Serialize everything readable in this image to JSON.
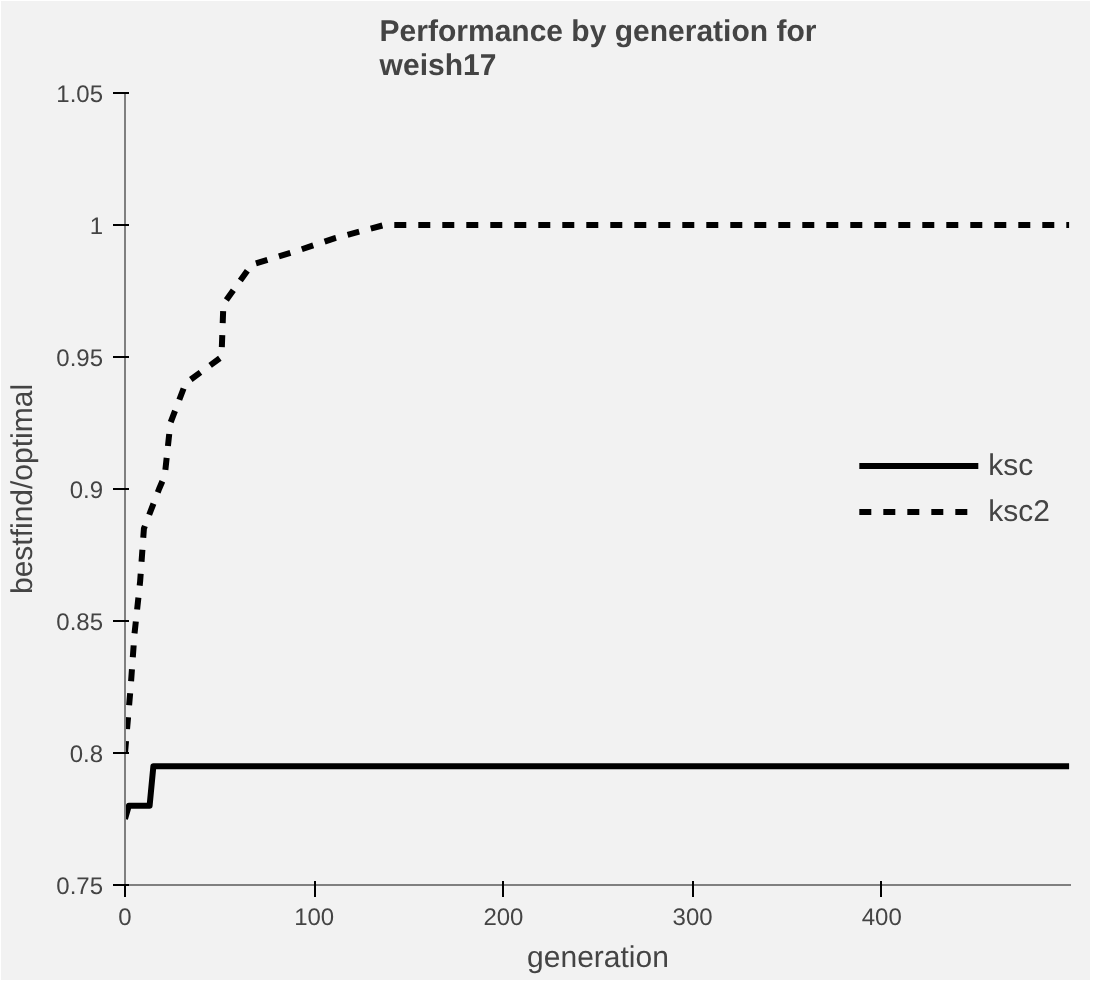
{
  "chart_data": {
    "type": "line",
    "title": "Performance by generation for\nweish17",
    "xlabel": "generation",
    "ylabel": "bestfind/optimal",
    "xlim": [
      0,
      500
    ],
    "xticks": [
      0,
      100,
      200,
      300,
      400
    ],
    "ylim": [
      0.75,
      1.05
    ],
    "yticks": [
      0.75,
      0.8,
      0.85,
      0.9,
      0.95,
      1,
      1.05
    ],
    "grid": false,
    "legend": "right",
    "marker": "none",
    "series": [
      {
        "name": "ksc",
        "color": "#000000",
        "line_style": "solid",
        "x": [
          0,
          2,
          13,
          15,
          499
        ],
        "values": [
          0.775,
          0.78,
          0.78,
          0.795,
          0.795
        ]
      },
      {
        "name": "ksc2",
        "color": "#000000",
        "line_style": "dashed",
        "x": [
          0,
          3,
          5,
          8,
          10,
          18,
          21,
          24,
          32,
          51,
          52,
          67,
          90,
          111,
          137,
          499
        ],
        "values": [
          0.8,
          0.825,
          0.845,
          0.865,
          0.885,
          0.9,
          0.905,
          0.925,
          0.94,
          0.95,
          0.97,
          0.985,
          0.99,
          0.995,
          1,
          1
        ]
      }
    ]
  }
}
